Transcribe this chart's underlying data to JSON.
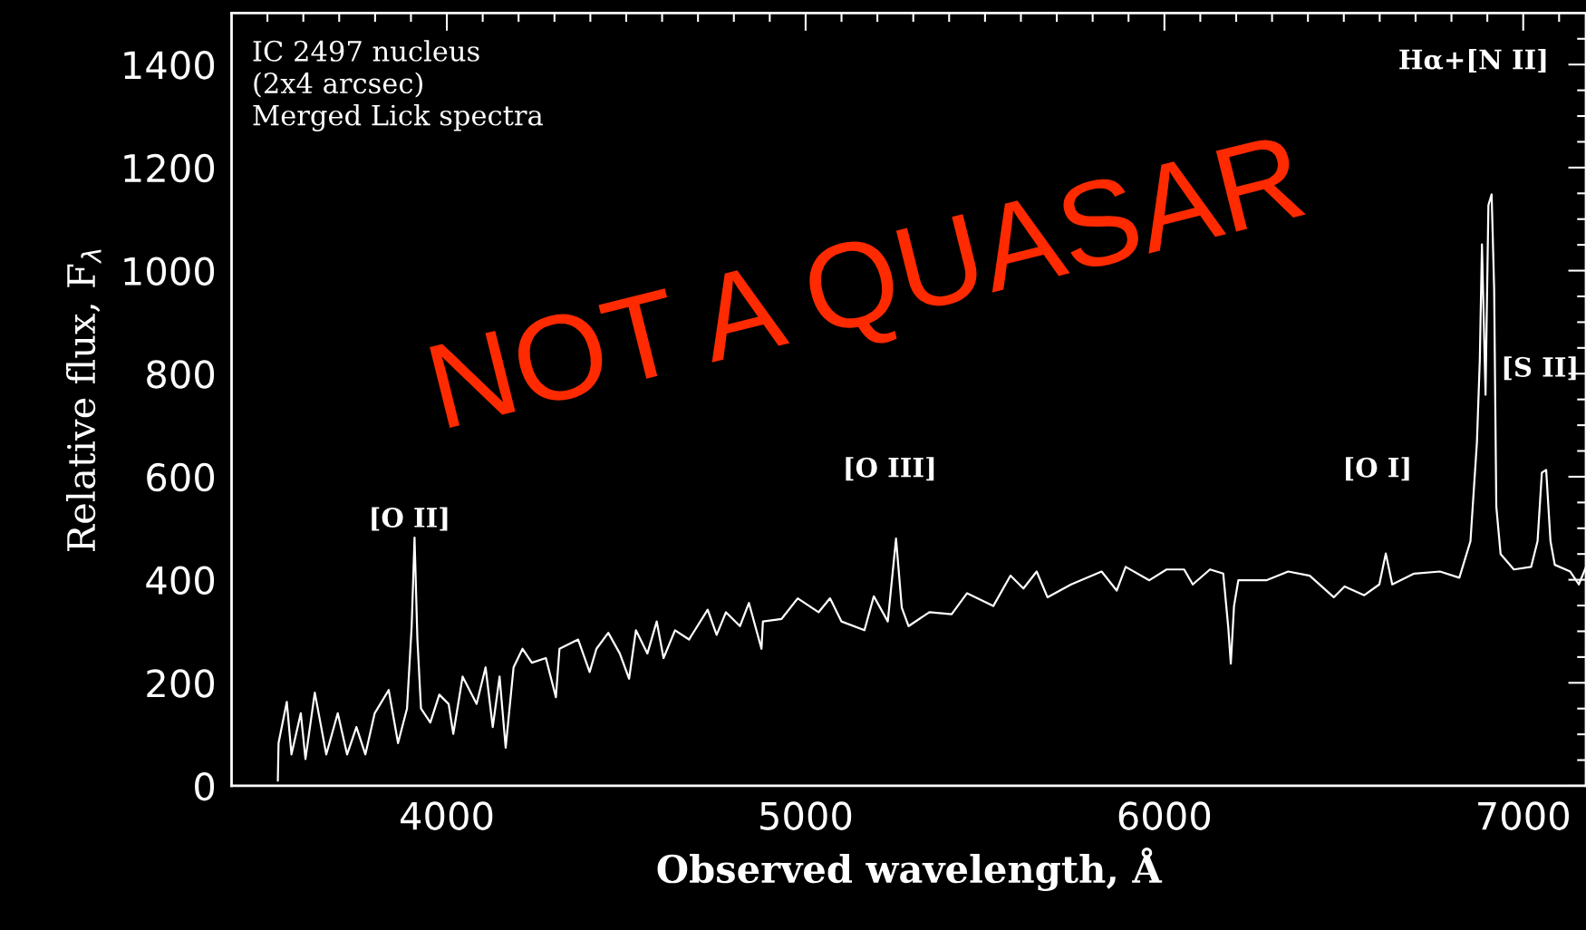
{
  "chart_data": {
    "type": "line",
    "xlabel": "Observed wavelength, Å",
    "ylabel": "Relative flux, F$_{λ}$",
    "annotations": [
      "IC 2497 nucleus\n(2x4 arcsec)\nMerged Lick spectra",
      "NOT A QUASAR",
      {
        "text": "[O II]",
        "x": 3910,
        "y": 482
      },
      "[O III]",
      "[O I]",
      "Hα+[N II]",
      "[S II]"
    ],
    "series": [
      {
        "color": "#ffffff",
        "x": [
          3529,
          3531,
          3554,
          3567,
          3593,
          3606,
          3632,
          3664,
          3696,
          3722,
          3748,
          3773,
          3799,
          3838,
          3864,
          3889,
          3902,
          3910,
          3918,
          3928,
          3954,
          3979,
          4005,
          4018,
          4044,
          4083,
          4108,
          4128,
          4147,
          4164,
          4186,
          4211,
          4237,
          4276,
          4304,
          4314,
          4366,
          4398,
          4417,
          4450,
          4482,
          4508,
          4527,
          4559,
          4585,
          4604,
          4636,
          4675,
          4727,
          4752,
          4778,
          4817,
          4842,
          4877,
          4881,
          4933,
          4978,
          5036,
          5068,
          5100,
          5164,
          5190,
          5229,
          5252,
          5268,
          5287,
          5345,
          5407,
          5450,
          5523,
          5571,
          5607,
          5644,
          5674,
          5740,
          5825,
          5867,
          5892,
          5958,
          6006,
          6055,
          6079,
          6127,
          6164,
          6178,
          6185,
          6194,
          6206,
          6284,
          6345,
          6405,
          6472,
          6502,
          6557,
          6599,
          6617,
          6635,
          6696,
          6768,
          6822,
          6853,
          6871,
          6879,
          6885,
          6895,
          6903,
          6912,
          6919,
          6925,
          6937,
          6974,
          7022,
          7040,
          7052,
          7064,
          7076,
          7088,
          7131,
          7155,
          7175
        ],
        "values": [
          10,
          83,
          163,
          61,
          141,
          52,
          181,
          61,
          141,
          61,
          114,
          61,
          141,
          186,
          83,
          150,
          310,
          482,
          284,
          150,
          123,
          177,
          159,
          101,
          212,
          159,
          230,
          114,
          212,
          74,
          230,
          266,
          239,
          248,
          172,
          266,
          284,
          221,
          266,
          297,
          257,
          208,
          302,
          257,
          319,
          248,
          302,
          284,
          342,
          293,
          337,
          310,
          355,
          266,
          319,
          324,
          364,
          337,
          364,
          319,
          302,
          368,
          319,
          480,
          346,
          310,
          337,
          333,
          374,
          349,
          408,
          383,
          416,
          366,
          391,
          416,
          379,
          425,
          399,
          420,
          420,
          391,
          420,
          412,
          307,
          237,
          349,
          399,
          399,
          416,
          408,
          366,
          387,
          370,
          391,
          451,
          391,
          412,
          416,
          404,
          475,
          667,
          826,
          1051,
          759,
          1127,
          1148,
          964,
          542,
          450,
          420,
          425,
          475,
          608,
          613,
          475,
          429,
          416,
          391,
          425
        ]
      }
    ],
    "xlim": [
      3400,
      7175
    ],
    "ylim": [
      0,
      1500
    ],
    "xticks": [
      {
        "value": 3500,
        "label": null
      },
      {
        "value": 3600,
        "label": null
      },
      {
        "value": 3700,
        "label": null
      },
      {
        "value": 3800,
        "label": null
      },
      {
        "value": 3900,
        "label": null
      },
      4000,
      {
        "value": 4100,
        "label": null
      },
      {
        "value": 4200,
        "label": null
      },
      {
        "value": 4300,
        "label": null
      },
      {
        "value": 4400,
        "label": null
      },
      {
        "value": 4500,
        "label": null
      },
      {
        "value": 4600,
        "label": null
      },
      {
        "value": 4700,
        "label": null
      },
      {
        "value": 4800,
        "label": null
      },
      {
        "value": 4900,
        "label": null
      },
      5000,
      {
        "value": 5100,
        "label": null
      },
      {
        "value": 5200,
        "label": null
      },
      {
        "value": 5300,
        "label": null
      },
      {
        "value": 5400,
        "label": null
      },
      {
        "value": 5500,
        "label": null
      },
      {
        "value": 5600,
        "label": null
      },
      {
        "value": 5700,
        "label": null
      },
      {
        "value": 5800,
        "label": null
      },
      {
        "value": 5900,
        "label": null
      },
      6000,
      {
        "value": 6100,
        "label": null
      },
      {
        "value": 6200,
        "label": null
      },
      {
        "value": 6300,
        "label": null
      },
      {
        "value": 6400,
        "label": null
      },
      {
        "value": 6500,
        "label": null
      },
      {
        "value": 6600,
        "label": null
      },
      {
        "value": 6700,
        "label": null
      },
      {
        "value": 6800,
        "label": null
      },
      {
        "value": 6900,
        "label": null
      },
      7000,
      {
        "value": 7100,
        "label": null
      }
    ],
    "yticks": [
      0,
      {
        "value": 50,
        "label": null
      },
      {
        "value": 100,
        "label": null
      },
      {
        "value": 150,
        "label": null
      },
      200,
      {
        "value": 250,
        "label": null
      },
      {
        "value": 300,
        "label": null
      },
      {
        "value": 350,
        "label": null
      },
      400,
      {
        "value": 450,
        "label": null
      },
      {
        "value": 500,
        "label": null
      },
      {
        "value": 550,
        "label": null
      },
      600,
      {
        "value": 650,
        "label": null
      },
      {
        "value": 700,
        "label": null
      },
      {
        "value": 750,
        "label": null
      },
      800,
      {
        "value": 850,
        "label": null
      },
      {
        "value": 900,
        "label": null
      },
      {
        "value": 950,
        "label": null
      },
      1000,
      {
        "value": 1050,
        "label": null
      },
      {
        "value": 1100,
        "label": null
      },
      {
        "value": 1150,
        "label": null
      },
      1200,
      {
        "value": 1250,
        "label": null
      },
      {
        "value": 1300,
        "label": null
      },
      {
        "value": 1350,
        "label": null
      },
      1400,
      {
        "value": 1450,
        "label": null
      }
    ],
    "grid": false,
    "legend": false,
    "marker": "none",
    "line_style": "solid"
  }
}
